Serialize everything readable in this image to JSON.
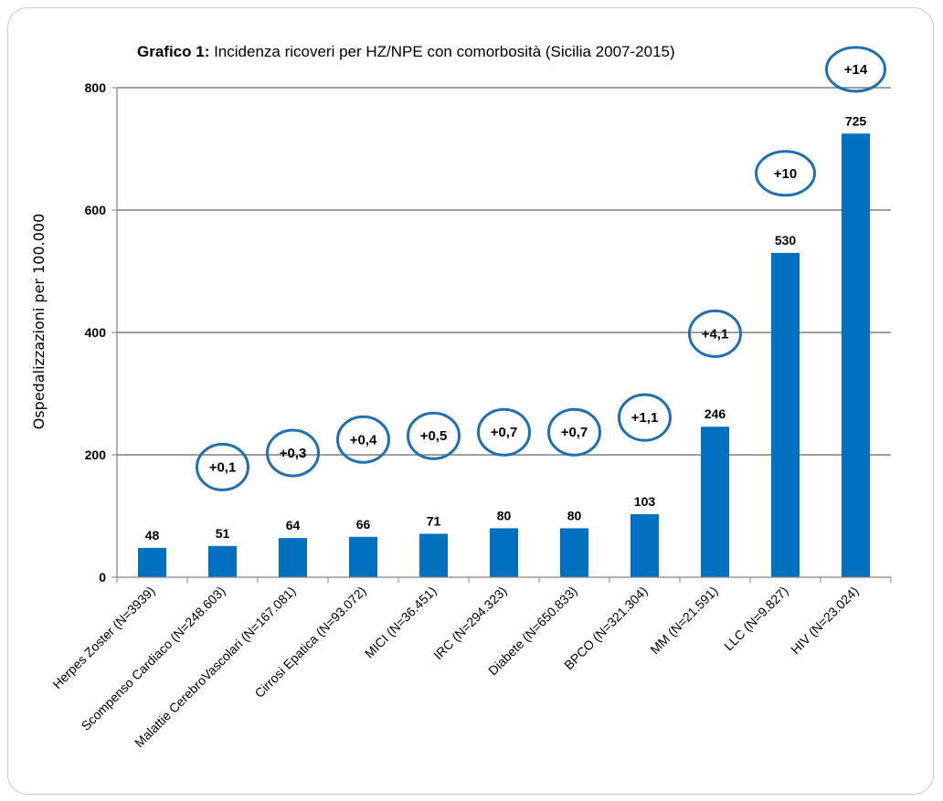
{
  "chart_data": {
    "type": "bar",
    "title_bold": "Grafico 1:",
    "title_rest": " Incidenza ricoveri per HZ/NPE con comorbosità (Sicilia 2007-2015)",
    "xlabel": "",
    "ylabel": "Ospedalizzazioni per 100.000",
    "ylim": [
      0,
      800
    ],
    "yticks": [
      0,
      200,
      400,
      600,
      800
    ],
    "grid": true,
    "colors": {
      "bar": "#0070C0",
      "circle": "#1F6FB5",
      "grid": "#808080"
    },
    "categories": [
      "Herpes Zoster (N=3939)",
      "Scompenso Cardiaco (N=248.603)",
      "Malattie CerebroVascolari (N=167.081)",
      "Cirrosi Epatica (N=93.072)",
      "MICI (N=36.451)",
      "IRC (N=294.323)",
      "Diabete (N=650.833)",
      "BPCO (N=321.304)",
      "MM (N=21.591)",
      "LLC (N=9.827)",
      "HIV (N=23.024)"
    ],
    "values": [
      48,
      51,
      64,
      66,
      71,
      80,
      80,
      103,
      246,
      530,
      725
    ],
    "annotations": [
      {
        "category_index": 1,
        "label": "+0,1",
        "y": 180
      },
      {
        "category_index": 2,
        "label": "+0,3",
        "y": 203
      },
      {
        "category_index": 3,
        "label": "+0,4",
        "y": 225
      },
      {
        "category_index": 4,
        "label": "+0,5",
        "y": 231
      },
      {
        "category_index": 5,
        "label": "+0,7",
        "y": 237
      },
      {
        "category_index": 6,
        "label": "+0,7",
        "y": 237
      },
      {
        "category_index": 7,
        "label": "+1,1",
        "y": 261
      },
      {
        "category_index": 8,
        "label": "+4,1",
        "y": 398
      },
      {
        "category_index": 9,
        "label": "+10",
        "y": 660
      },
      {
        "category_index": 10,
        "label": "+14",
        "y": 830
      }
    ]
  }
}
